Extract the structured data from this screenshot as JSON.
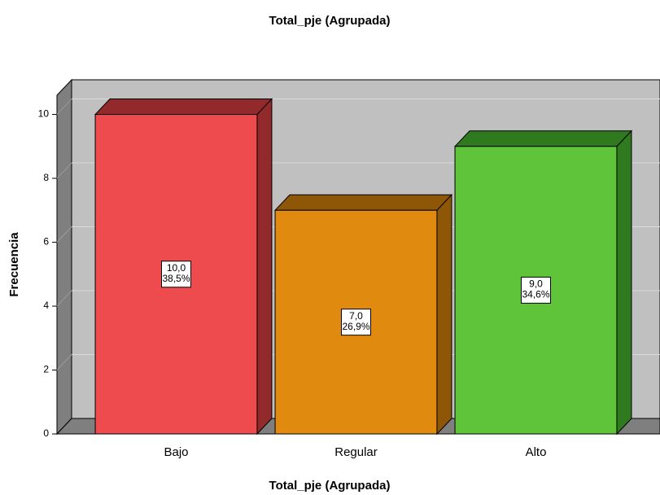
{
  "chart_data": {
    "type": "bar3d",
    "title": "Total_pje (Agrupada)",
    "x_label": "Total_pje (Agrupada)",
    "y_label": "Frecuencia",
    "categories": [
      "Bajo",
      "Regular",
      "Alto"
    ],
    "values": [
      10,
      7,
      9
    ],
    "value_labels": [
      "10,0",
      "7,0",
      "9,0"
    ],
    "percent_labels": [
      "38,5%",
      "26,9%",
      "34,6%"
    ],
    "colors": [
      "#ee4b4e",
      "#e08a10",
      "#5fc43a"
    ],
    "shade_colors": [
      "#922a2c",
      "#8e5708",
      "#2f7a1f"
    ],
    "ylim": [
      0,
      10.6
    ],
    "yticks": [
      0,
      2,
      4,
      6,
      8,
      10
    ],
    "grid": true
  }
}
